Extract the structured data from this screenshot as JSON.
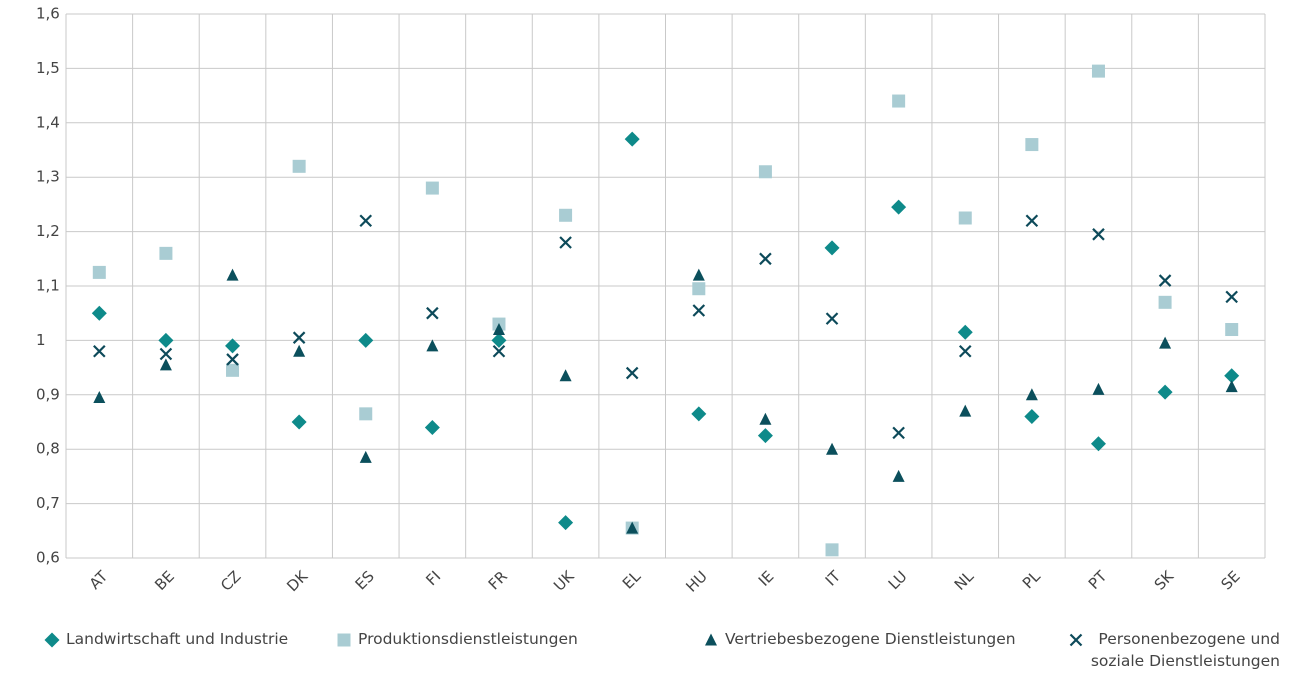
{
  "chart_data": {
    "type": "scatter",
    "categories": [
      "AT",
      "BE",
      "CZ",
      "DK",
      "ES",
      "FI",
      "FR",
      "UK",
      "EL",
      "HU",
      "IE",
      "IT",
      "LU",
      "NL",
      "PL",
      "PT",
      "SK",
      "SE"
    ],
    "series": [
      {
        "name": "Landwirtschaft und Industrie",
        "color": "#0e8a8a",
        "marker": "diamond",
        "values": [
          1.05,
          1.0,
          0.99,
          0.85,
          1.0,
          0.84,
          1.0,
          0.665,
          1.37,
          0.865,
          0.825,
          1.17,
          1.245,
          1.015,
          0.86,
          0.81,
          0.905,
          0.935
        ]
      },
      {
        "name": "Produktionsdienstleistungen",
        "color": "#a9ccd3",
        "marker": "square",
        "values": [
          1.125,
          1.16,
          0.945,
          1.32,
          0.865,
          1.28,
          1.03,
          1.23,
          0.655,
          1.095,
          1.31,
          0.615,
          1.44,
          1.225,
          1.36,
          1.495,
          1.07,
          1.02
        ]
      },
      {
        "name": "Vertriebesbezogene Dienstleistungen",
        "color": "#0b4f5c",
        "marker": "triangle",
        "values": [
          0.895,
          0.955,
          1.12,
          0.98,
          0.785,
          0.99,
          1.02,
          0.935,
          0.655,
          1.12,
          0.855,
          0.8,
          0.75,
          0.87,
          0.9,
          0.91,
          0.995,
          0.915
        ]
      },
      {
        "name": "Personenbezogene und soziale Dienstleistungen",
        "color": "#0d4a5a",
        "marker": "cross",
        "values": [
          0.98,
          0.975,
          0.965,
          1.005,
          1.22,
          1.05,
          0.98,
          1.18,
          0.94,
          1.055,
          1.15,
          1.04,
          0.83,
          0.98,
          1.22,
          1.195,
          1.11,
          1.08
        ]
      }
    ],
    "ylim": [
      0.6,
      1.6
    ],
    "yticks": [
      {
        "value": 0.6,
        "label": "0,6"
      },
      {
        "value": 0.7,
        "label": "0,7"
      },
      {
        "value": 0.8,
        "label": "0,8"
      },
      {
        "value": 0.9,
        "label": "0,9"
      },
      1,
      {
        "value": 1.1,
        "label": "1,1"
      },
      {
        "value": 1.2,
        "label": "1,2"
      },
      {
        "value": 1.3,
        "label": "1,3"
      },
      {
        "value": 1.4,
        "label": "1,4"
      },
      {
        "value": 1.5,
        "label": "1,5"
      },
      {
        "value": 1.6,
        "label": "1,6"
      }
    ],
    "grid": true
  }
}
